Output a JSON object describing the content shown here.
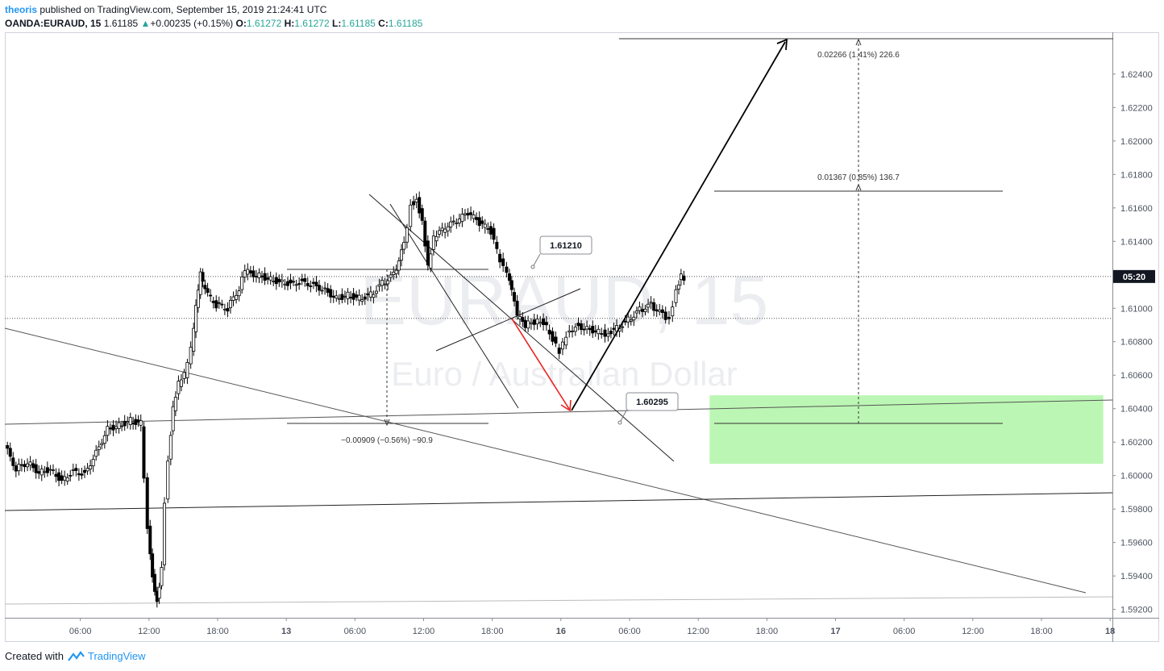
{
  "header": {
    "author": "theoris",
    "published": "published on TradingView.com, September 15, 2019 21:24:41 UTC",
    "symbol": "OANDA:EURAUD, 15",
    "last": "1.61185",
    "change": "+0.00235 (+0.15%)",
    "o_label": "O:",
    "o_value": "1.61272",
    "h_label": "H:",
    "h_value": "1.61272",
    "l_label": "L:",
    "l_value": "1.61185",
    "c_label": "C:",
    "c_value": "1.61185"
  },
  "watermark": {
    "symbol": "EURAUD, 15",
    "description": "Euro / Australian Dollar"
  },
  "footer": {
    "created_with": "Created with",
    "brand": "TradingView"
  },
  "colors": {
    "up": "#26a69a",
    "accent": "#2196f3",
    "zone": "#b8f5b0",
    "down_arrow": "#e8211d",
    "text": "#131722"
  },
  "chart_data": {
    "type": "candlestick",
    "symbol": "OANDA:EURAUD",
    "interval": "15",
    "ylim": [
      1.5915,
      1.6265
    ],
    "y_ticks": [
      "1.62400",
      "1.62200",
      "1.62000",
      "1.61800",
      "1.61600",
      "1.61400",
      "1.61200",
      "1.61000",
      "1.60800",
      "1.60600",
      "1.60400",
      "1.60200",
      "1.60000",
      "1.59800",
      "1.59600",
      "1.59400",
      "1.59200"
    ],
    "x_ticks": [
      "06:00",
      "12:00",
      "18:00",
      "13",
      "06:00",
      "12:00",
      "18:00",
      "16",
      "06:00",
      "12:00",
      "18:00",
      "17",
      "06:00",
      "12:00",
      "18:00",
      "18"
    ],
    "x_tick_hours": [
      -36,
      -30,
      -24,
      -18,
      -12,
      -6,
      0,
      6,
      12,
      18,
      24,
      30,
      36,
      42,
      48,
      54
    ],
    "x_range_hours": [
      -42.6,
      54.2
    ],
    "current_price_label": "05:20",
    "current_price": 1.6119,
    "candle_trace": [
      [
        -42.5,
        1.6018
      ],
      [
        -41.5,
        1.6004
      ],
      [
        -40.5,
        1.6008
      ],
      [
        -39.5,
        1.6002
      ],
      [
        -38.5,
        1.6004
      ],
      [
        -37.5,
        1.5997
      ],
      [
        -36.5,
        1.6003
      ],
      [
        -35.5,
        1.6001
      ],
      [
        -34.5,
        1.6014
      ],
      [
        -33.5,
        1.6028
      ],
      [
        -32.5,
        1.603
      ],
      [
        -31.5,
        1.6033
      ],
      [
        -30.6,
        1.6031
      ],
      [
        -30.3,
        1.6
      ],
      [
        -30.0,
        1.597
      ],
      [
        -29.6,
        1.594
      ],
      [
        -29.2,
        1.5925
      ],
      [
        -28.8,
        1.5945
      ],
      [
        -28.5,
        1.5985
      ],
      [
        -28.2,
        1.601
      ],
      [
        -27.8,
        1.604
      ],
      [
        -27.3,
        1.6055
      ],
      [
        -26.8,
        1.606
      ],
      [
        -26.2,
        1.6075
      ],
      [
        -25.8,
        1.61
      ],
      [
        -25.4,
        1.612
      ],
      [
        -25.0,
        1.611
      ],
      [
        -24.0,
        1.6102
      ],
      [
        -23.0,
        1.61
      ],
      [
        -22.0,
        1.6112
      ],
      [
        -21.5,
        1.6122
      ],
      [
        -20.5,
        1.612
      ],
      [
        -19.5,
        1.6118
      ],
      [
        -18.5,
        1.6116
      ],
      [
        -17.5,
        1.6115
      ],
      [
        -16.5,
        1.6116
      ],
      [
        -15.5,
        1.6114
      ],
      [
        -14.5,
        1.6111
      ],
      [
        -13.5,
        1.6106
      ],
      [
        -12.5,
        1.6108
      ],
      [
        -11.5,
        1.6106
      ],
      [
        -10.5,
        1.6108
      ],
      [
        -9.5,
        1.6115
      ],
      [
        -8.5,
        1.612
      ],
      [
        -7.6,
        1.6138
      ],
      [
        -7.0,
        1.6162
      ],
      [
        -6.5,
        1.6165
      ],
      [
        -6.0,
        1.6152
      ],
      [
        -5.5,
        1.6125
      ],
      [
        -5.0,
        1.6142
      ],
      [
        -4.0,
        1.6148
      ],
      [
        -3.0,
        1.6152
      ],
      [
        -2.0,
        1.6157
      ],
      [
        -1.0,
        1.6151
      ],
      [
        0.0,
        1.6146
      ],
      [
        0.8,
        1.6128
      ],
      [
        1.4,
        1.612
      ],
      [
        1.8,
        1.611
      ],
      [
        2.3,
        1.6095
      ],
      [
        3.0,
        1.609
      ],
      [
        3.8,
        1.6092
      ],
      [
        4.6,
        1.6092
      ],
      [
        5.4,
        1.6082
      ],
      [
        6.0,
        1.6074
      ],
      [
        6.6,
        1.6084
      ],
      [
        7.4,
        1.609
      ],
      [
        8.4,
        1.6088
      ],
      [
        9.4,
        1.6086
      ],
      [
        10.0,
        1.6085
      ],
      [
        11.0,
        1.6088
      ],
      [
        12.0,
        1.6093
      ],
      [
        13.0,
        1.6099
      ],
      [
        14.0,
        1.6102
      ],
      [
        15.0,
        1.6096
      ],
      [
        15.6,
        1.6094
      ],
      [
        16.2,
        1.6111
      ],
      [
        16.6,
        1.612
      ],
      [
        16.9,
        1.6118
      ]
    ],
    "drawings": {
      "long_position_zone": {
        "price_from": 1.6007,
        "price_to": 1.6048,
        "hours_from": 19.0,
        "hours_to": 53.4
      },
      "price_labels": [
        {
          "text": "1.61210",
          "price": 1.6121,
          "hours": 26.5
        },
        {
          "text": "1.60295",
          "price": 1.60295,
          "hours": 36.5
        }
      ],
      "measurements": [
        {
          "text": "0.02266 (1.41%) 226.6",
          "price_from": 1.60295,
          "price_to": 1.6256,
          "hours": 61.0
        },
        {
          "text": "0.01367 (0.85%) 136.7",
          "price_from": 1.60295,
          "price_to": 1.6166,
          "hours": 61.0
        },
        {
          "text": "−0.00909 (−0.56%) −90.9",
          "price_from": 1.612,
          "price_to": 1.60295,
          "hours": 1.5
        }
      ]
    }
  }
}
